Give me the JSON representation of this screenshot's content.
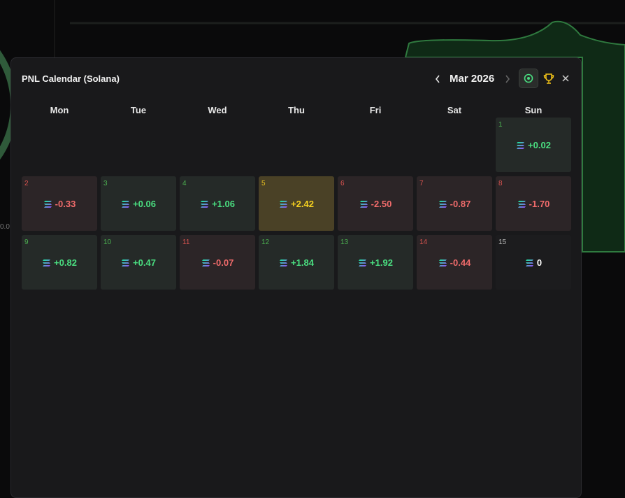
{
  "header": {
    "title": "PNL Calendar (Solana)",
    "month": "Mar 2026"
  },
  "weekdays": [
    "Mon",
    "Tue",
    "Wed",
    "Thu",
    "Fri",
    "Sat",
    "Sun"
  ],
  "days": [
    {
      "day": 1,
      "pnl": "+0.02"
    },
    {
      "day": 2,
      "pnl": "-0.33"
    },
    {
      "day": 3,
      "pnl": "+0.06"
    },
    {
      "day": 4,
      "pnl": "+1.06"
    },
    {
      "day": 5,
      "pnl": "+2.42"
    },
    {
      "day": 6,
      "pnl": "-2.50"
    },
    {
      "day": 7,
      "pnl": "-0.87"
    },
    {
      "day": 8,
      "pnl": "-1.70"
    },
    {
      "day": 9,
      "pnl": "+0.82"
    },
    {
      "day": 10,
      "pnl": "+0.47"
    },
    {
      "day": 11,
      "pnl": "-0.07"
    },
    {
      "day": 12,
      "pnl": "+1.84"
    },
    {
      "day": 13,
      "pnl": "+1.92"
    },
    {
      "day": 14,
      "pnl": "-0.44"
    },
    {
      "day": 15,
      "pnl": "0"
    }
  ]
}
